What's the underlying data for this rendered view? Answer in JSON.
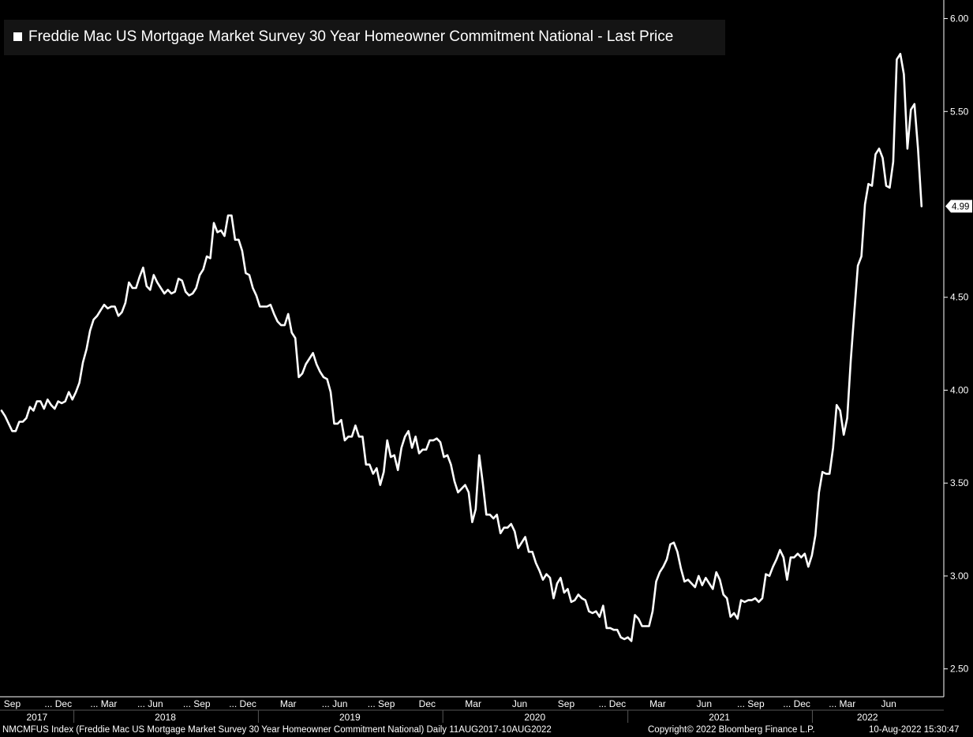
{
  "chart_data": {
    "type": "line",
    "legend": "Freddie Mac US Mortgage Market Survey 30 Year Homeowner Commitment National - Last Price",
    "last_value_label": "4.99",
    "ylim": [
      2.35,
      6.1
    ],
    "y_ticks": [
      "2.50",
      "3.00",
      "3.50",
      "4.00",
      "4.50",
      "5.50",
      "6.00"
    ],
    "grid": false,
    "colors": {
      "background": "#000000",
      "line": "#ffffff",
      "legend_bg": "#141414"
    },
    "month_labels": [
      "Sep",
      "... Dec",
      "... Mar",
      "... Jun",
      "... Sep",
      "... Dec",
      "Mar",
      "... Jun",
      "... Sep",
      "Dec",
      "Mar",
      "Jun",
      "Sep",
      "... Dec",
      "Mar",
      "Jun",
      "... Sep",
      "... Dec",
      "... Mar",
      "Jun"
    ],
    "year_labels": [
      "2017",
      "2018",
      "2019",
      "2020",
      "2021",
      "2022"
    ],
    "series": [
      {
        "points": [
          [
            "2017-08-11",
            3.89
          ],
          [
            "2017-08-18",
            3.86
          ],
          [
            "2017-08-25",
            3.82
          ],
          [
            "2017-09-01",
            3.78
          ],
          [
            "2017-09-08",
            3.78
          ],
          [
            "2017-09-15",
            3.83
          ],
          [
            "2017-09-22",
            3.83
          ],
          [
            "2017-09-29",
            3.85
          ],
          [
            "2017-10-06",
            3.91
          ],
          [
            "2017-10-13",
            3.89
          ],
          [
            "2017-10-20",
            3.94
          ],
          [
            "2017-10-27",
            3.94
          ],
          [
            "2017-11-03",
            3.9
          ],
          [
            "2017-11-10",
            3.95
          ],
          [
            "2017-11-17",
            3.92
          ],
          [
            "2017-11-24",
            3.9
          ],
          [
            "2017-12-01",
            3.94
          ],
          [
            "2017-12-08",
            3.93
          ],
          [
            "2017-12-15",
            3.94
          ],
          [
            "2017-12-22",
            3.99
          ],
          [
            "2017-12-29",
            3.95
          ],
          [
            "2018-01-05",
            3.99
          ],
          [
            "2018-01-12",
            4.04
          ],
          [
            "2018-01-19",
            4.15
          ],
          [
            "2018-01-26",
            4.22
          ],
          [
            "2018-02-02",
            4.32
          ],
          [
            "2018-02-09",
            4.38
          ],
          [
            "2018-02-16",
            4.4
          ],
          [
            "2018-02-23",
            4.43
          ],
          [
            "2018-03-02",
            4.46
          ],
          [
            "2018-03-09",
            4.44
          ],
          [
            "2018-03-16",
            4.45
          ],
          [
            "2018-03-23",
            4.45
          ],
          [
            "2018-03-30",
            4.4
          ],
          [
            "2018-04-06",
            4.42
          ],
          [
            "2018-04-13",
            4.47
          ],
          [
            "2018-04-20",
            4.58
          ],
          [
            "2018-04-27",
            4.55
          ],
          [
            "2018-05-04",
            4.55
          ],
          [
            "2018-05-11",
            4.61
          ],
          [
            "2018-05-18",
            4.66
          ],
          [
            "2018-05-25",
            4.56
          ],
          [
            "2018-06-01",
            4.54
          ],
          [
            "2018-06-08",
            4.62
          ],
          [
            "2018-06-15",
            4.58
          ],
          [
            "2018-06-22",
            4.55
          ],
          [
            "2018-06-29",
            4.52
          ],
          [
            "2018-07-06",
            4.54
          ],
          [
            "2018-07-13",
            4.52
          ],
          [
            "2018-07-20",
            4.53
          ],
          [
            "2018-07-27",
            4.6
          ],
          [
            "2018-08-03",
            4.59
          ],
          [
            "2018-08-10",
            4.53
          ],
          [
            "2018-08-17",
            4.51
          ],
          [
            "2018-08-24",
            4.52
          ],
          [
            "2018-08-31",
            4.55
          ],
          [
            "2018-09-07",
            4.62
          ],
          [
            "2018-09-14",
            4.65
          ],
          [
            "2018-09-21",
            4.72
          ],
          [
            "2018-09-28",
            4.71
          ],
          [
            "2018-10-05",
            4.9
          ],
          [
            "2018-10-12",
            4.85
          ],
          [
            "2018-10-19",
            4.86
          ],
          [
            "2018-10-26",
            4.83
          ],
          [
            "2018-11-02",
            4.94
          ],
          [
            "2018-11-09",
            4.94
          ],
          [
            "2018-11-16",
            4.81
          ],
          [
            "2018-11-23",
            4.81
          ],
          [
            "2018-11-30",
            4.75
          ],
          [
            "2018-12-07",
            4.63
          ],
          [
            "2018-12-14",
            4.62
          ],
          [
            "2018-12-21",
            4.55
          ],
          [
            "2018-12-28",
            4.51
          ],
          [
            "2019-01-04",
            4.45
          ],
          [
            "2019-01-11",
            4.45
          ],
          [
            "2019-01-18",
            4.45
          ],
          [
            "2019-01-25",
            4.46
          ],
          [
            "2019-02-01",
            4.41
          ],
          [
            "2019-02-08",
            4.37
          ],
          [
            "2019-02-15",
            4.35
          ],
          [
            "2019-02-22",
            4.35
          ],
          [
            "2019-03-01",
            4.41
          ],
          [
            "2019-03-08",
            4.31
          ],
          [
            "2019-03-15",
            4.28
          ],
          [
            "2019-03-22",
            4.07
          ],
          [
            "2019-03-29",
            4.09
          ],
          [
            "2019-04-05",
            4.14
          ],
          [
            "2019-04-12",
            4.17
          ],
          [
            "2019-04-19",
            4.2
          ],
          [
            "2019-04-26",
            4.14
          ],
          [
            "2019-05-03",
            4.1
          ],
          [
            "2019-05-10",
            4.07
          ],
          [
            "2019-05-17",
            4.06
          ],
          [
            "2019-05-24",
            3.99
          ],
          [
            "2019-05-31",
            3.82
          ],
          [
            "2019-06-07",
            3.82
          ],
          [
            "2019-06-14",
            3.84
          ],
          [
            "2019-06-21",
            3.73
          ],
          [
            "2019-06-28",
            3.75
          ],
          [
            "2019-07-05",
            3.75
          ],
          [
            "2019-07-12",
            3.81
          ],
          [
            "2019-07-19",
            3.75
          ],
          [
            "2019-07-26",
            3.75
          ],
          [
            "2019-08-02",
            3.6
          ],
          [
            "2019-08-09",
            3.6
          ],
          [
            "2019-08-16",
            3.55
          ],
          [
            "2019-08-23",
            3.58
          ],
          [
            "2019-08-30",
            3.49
          ],
          [
            "2019-09-06",
            3.56
          ],
          [
            "2019-09-13",
            3.73
          ],
          [
            "2019-09-20",
            3.64
          ],
          [
            "2019-09-27",
            3.65
          ],
          [
            "2019-10-04",
            3.57
          ],
          [
            "2019-10-11",
            3.69
          ],
          [
            "2019-10-18",
            3.75
          ],
          [
            "2019-10-25",
            3.78
          ],
          [
            "2019-11-01",
            3.69
          ],
          [
            "2019-11-08",
            3.75
          ],
          [
            "2019-11-15",
            3.66
          ],
          [
            "2019-11-22",
            3.68
          ],
          [
            "2019-11-29",
            3.68
          ],
          [
            "2019-12-06",
            3.73
          ],
          [
            "2019-12-13",
            3.73
          ],
          [
            "2019-12-20",
            3.74
          ],
          [
            "2019-12-27",
            3.72
          ],
          [
            "2020-01-03",
            3.64
          ],
          [
            "2020-01-10",
            3.65
          ],
          [
            "2020-01-17",
            3.6
          ],
          [
            "2020-01-24",
            3.51
          ],
          [
            "2020-01-31",
            3.45
          ],
          [
            "2020-02-07",
            3.47
          ],
          [
            "2020-02-14",
            3.49
          ],
          [
            "2020-02-21",
            3.45
          ],
          [
            "2020-02-28",
            3.29
          ],
          [
            "2020-03-06",
            3.36
          ],
          [
            "2020-03-13",
            3.65
          ],
          [
            "2020-03-20",
            3.5
          ],
          [
            "2020-03-27",
            3.33
          ],
          [
            "2020-04-03",
            3.33
          ],
          [
            "2020-04-10",
            3.31
          ],
          [
            "2020-04-17",
            3.33
          ],
          [
            "2020-04-24",
            3.23
          ],
          [
            "2020-05-01",
            3.26
          ],
          [
            "2020-05-08",
            3.26
          ],
          [
            "2020-05-15",
            3.28
          ],
          [
            "2020-05-22",
            3.24
          ],
          [
            "2020-05-29",
            3.15
          ],
          [
            "2020-06-05",
            3.18
          ],
          [
            "2020-06-12",
            3.21
          ],
          [
            "2020-06-19",
            3.13
          ],
          [
            "2020-06-26",
            3.13
          ],
          [
            "2020-07-03",
            3.07
          ],
          [
            "2020-07-10",
            3.03
          ],
          [
            "2020-07-17",
            2.98
          ],
          [
            "2020-07-24",
            3.01
          ],
          [
            "2020-07-31",
            2.99
          ],
          [
            "2020-08-07",
            2.88
          ],
          [
            "2020-08-14",
            2.96
          ],
          [
            "2020-08-21",
            2.99
          ],
          [
            "2020-08-28",
            2.91
          ],
          [
            "2020-09-04",
            2.93
          ],
          [
            "2020-09-11",
            2.86
          ],
          [
            "2020-09-18",
            2.87
          ],
          [
            "2020-09-25",
            2.9
          ],
          [
            "2020-10-02",
            2.88
          ],
          [
            "2020-10-09",
            2.87
          ],
          [
            "2020-10-16",
            2.81
          ],
          [
            "2020-10-23",
            2.8
          ],
          [
            "2020-10-30",
            2.81
          ],
          [
            "2020-11-06",
            2.78
          ],
          [
            "2020-11-13",
            2.84
          ],
          [
            "2020-11-20",
            2.72
          ],
          [
            "2020-11-27",
            2.72
          ],
          [
            "2020-12-04",
            2.71
          ],
          [
            "2020-12-11",
            2.71
          ],
          [
            "2020-12-18",
            2.67
          ],
          [
            "2020-12-25",
            2.66
          ],
          [
            "2021-01-01",
            2.67
          ],
          [
            "2021-01-08",
            2.65
          ],
          [
            "2021-01-15",
            2.79
          ],
          [
            "2021-01-22",
            2.77
          ],
          [
            "2021-01-29",
            2.73
          ],
          [
            "2021-02-05",
            2.73
          ],
          [
            "2021-02-12",
            2.73
          ],
          [
            "2021-02-19",
            2.81
          ],
          [
            "2021-02-26",
            2.97
          ],
          [
            "2021-03-05",
            3.02
          ],
          [
            "2021-03-12",
            3.05
          ],
          [
            "2021-03-19",
            3.09
          ],
          [
            "2021-03-26",
            3.17
          ],
          [
            "2021-04-02",
            3.18
          ],
          [
            "2021-04-09",
            3.13
          ],
          [
            "2021-04-16",
            3.04
          ],
          [
            "2021-04-23",
            2.97
          ],
          [
            "2021-04-30",
            2.98
          ],
          [
            "2021-05-07",
            2.96
          ],
          [
            "2021-05-14",
            2.94
          ],
          [
            "2021-05-21",
            3.0
          ],
          [
            "2021-05-28",
            2.95
          ],
          [
            "2021-06-04",
            2.99
          ],
          [
            "2021-06-11",
            2.96
          ],
          [
            "2021-06-18",
            2.93
          ],
          [
            "2021-06-25",
            3.02
          ],
          [
            "2021-07-02",
            2.98
          ],
          [
            "2021-07-09",
            2.9
          ],
          [
            "2021-07-16",
            2.88
          ],
          [
            "2021-07-23",
            2.78
          ],
          [
            "2021-07-30",
            2.8
          ],
          [
            "2021-08-06",
            2.77
          ],
          [
            "2021-08-13",
            2.87
          ],
          [
            "2021-08-20",
            2.86
          ],
          [
            "2021-08-27",
            2.87
          ],
          [
            "2021-09-03",
            2.87
          ],
          [
            "2021-09-10",
            2.88
          ],
          [
            "2021-09-17",
            2.86
          ],
          [
            "2021-09-24",
            2.88
          ],
          [
            "2021-10-01",
            3.01
          ],
          [
            "2021-10-08",
            3.0
          ],
          [
            "2021-10-15",
            3.05
          ],
          [
            "2021-10-22",
            3.09
          ],
          [
            "2021-10-29",
            3.14
          ],
          [
            "2021-11-05",
            3.1
          ],
          [
            "2021-11-12",
            2.98
          ],
          [
            "2021-11-19",
            3.1
          ],
          [
            "2021-11-26",
            3.1
          ],
          [
            "2021-12-03",
            3.12
          ],
          [
            "2021-12-10",
            3.1
          ],
          [
            "2021-12-17",
            3.12
          ],
          [
            "2021-12-24",
            3.05
          ],
          [
            "2021-12-31",
            3.11
          ],
          [
            "2022-01-07",
            3.22
          ],
          [
            "2022-01-14",
            3.45
          ],
          [
            "2022-01-21",
            3.56
          ],
          [
            "2022-01-28",
            3.55
          ],
          [
            "2022-02-04",
            3.55
          ],
          [
            "2022-02-11",
            3.69
          ],
          [
            "2022-02-18",
            3.92
          ],
          [
            "2022-02-25",
            3.89
          ],
          [
            "2022-03-04",
            3.76
          ],
          [
            "2022-03-11",
            3.85
          ],
          [
            "2022-03-18",
            4.16
          ],
          [
            "2022-03-25",
            4.42
          ],
          [
            "2022-04-01",
            4.67
          ],
          [
            "2022-04-08",
            4.72
          ],
          [
            "2022-04-15",
            5.0
          ],
          [
            "2022-04-22",
            5.11
          ],
          [
            "2022-04-29",
            5.1
          ],
          [
            "2022-05-06",
            5.27
          ],
          [
            "2022-05-13",
            5.3
          ],
          [
            "2022-05-20",
            5.25
          ],
          [
            "2022-05-27",
            5.1
          ],
          [
            "2022-06-03",
            5.09
          ],
          [
            "2022-06-10",
            5.23
          ],
          [
            "2022-06-17",
            5.78
          ],
          [
            "2022-06-24",
            5.81
          ],
          [
            "2022-07-01",
            5.7
          ],
          [
            "2022-07-08",
            5.3
          ],
          [
            "2022-07-15",
            5.51
          ],
          [
            "2022-07-22",
            5.54
          ],
          [
            "2022-07-29",
            5.3
          ],
          [
            "2022-08-05",
            4.99
          ]
        ]
      }
    ]
  },
  "footer": {
    "left": "NMCMFUS Index (Freddie Mac US Mortgage Market Survey 30 Year Homeowner Commitment National)  Daily 11AUG2017-10AUG2022",
    "center": "Copyright© 2022 Bloomberg Finance L.P.",
    "right": "10-Aug-2022 15:30:47"
  }
}
